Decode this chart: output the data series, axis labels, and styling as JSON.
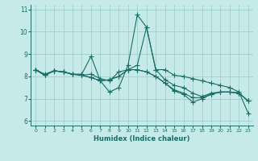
{
  "title": "",
  "xlabel": "Humidex (Indice chaleur)",
  "ylabel": "",
  "background_color": "#c5eae8",
  "line_color": "#1a6e66",
  "grid_color": "#a0d0cc",
  "xlim": [
    -0.5,
    23.5
  ],
  "ylim": [
    5.8,
    11.2
  ],
  "yticks": [
    6,
    7,
    8,
    9,
    10,
    11
  ],
  "xticks": [
    0,
    1,
    2,
    3,
    4,
    5,
    6,
    7,
    8,
    9,
    10,
    11,
    12,
    13,
    14,
    15,
    16,
    17,
    18,
    19,
    20,
    21,
    22,
    23
  ],
  "series": [
    [
      8.3,
      8.1,
      8.25,
      8.2,
      8.1,
      8.1,
      8.9,
      7.8,
      7.3,
      7.5,
      8.5,
      10.75,
      10.2,
      8.3,
      8.3,
      8.05,
      8.0,
      7.9,
      7.8,
      7.7,
      7.6,
      7.5,
      7.3,
      6.35
    ],
    [
      8.3,
      8.05,
      8.25,
      8.2,
      8.1,
      8.05,
      8.1,
      7.9,
      7.8,
      8.2,
      8.3,
      8.5,
      10.2,
      8.3,
      7.85,
      7.6,
      7.5,
      7.25,
      7.1,
      7.25,
      7.3,
      7.3,
      7.25,
      6.9
    ],
    [
      8.3,
      8.05,
      8.25,
      8.2,
      8.1,
      8.05,
      7.95,
      7.8,
      7.85,
      8.0,
      8.3,
      8.3,
      8.2,
      8.0,
      7.7,
      7.4,
      7.25,
      7.05,
      7.05,
      7.2,
      7.3,
      7.3,
      7.25,
      6.9
    ],
    [
      8.3,
      8.05,
      8.25,
      8.2,
      8.1,
      8.05,
      7.95,
      7.8,
      7.85,
      8.0,
      8.3,
      8.3,
      8.2,
      8.0,
      7.7,
      7.35,
      7.2,
      6.85,
      7.0,
      7.2,
      7.3,
      7.3,
      7.25,
      6.9
    ]
  ],
  "marker": "+",
  "markersize": 4,
  "linewidth": 0.8
}
